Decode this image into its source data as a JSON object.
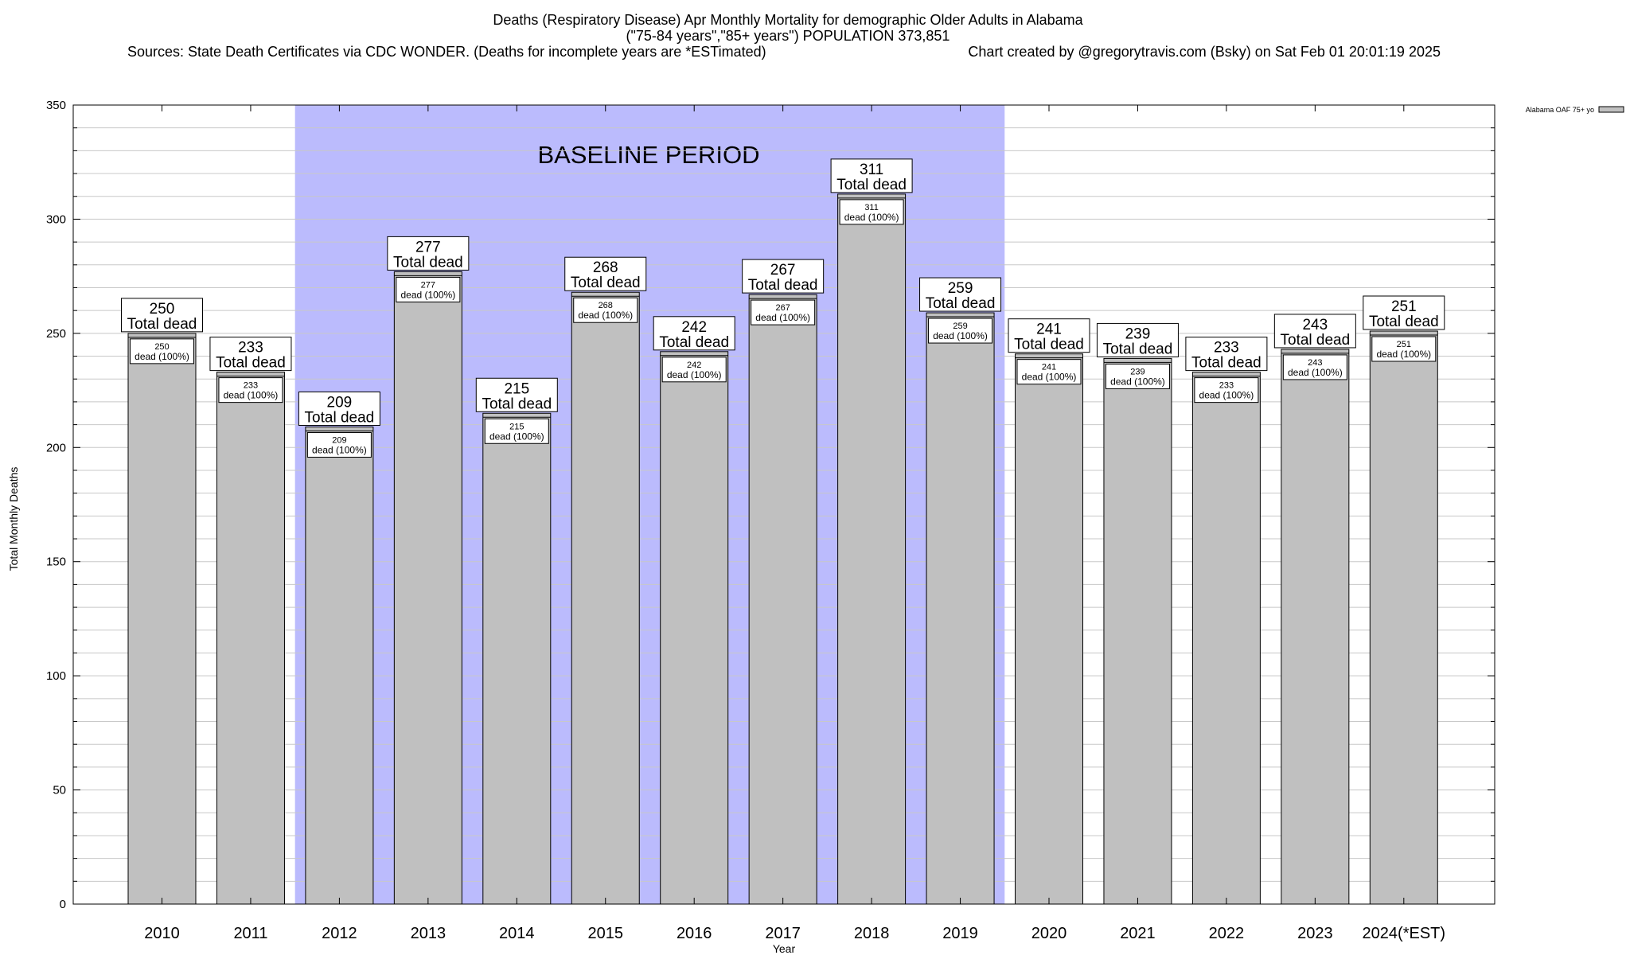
{
  "chart_data": {
    "type": "bar",
    "title": "Deaths (Respiratory Disease) Apr Monthly Mortality for demographic Older Adults in Alabama",
    "subtitle": "(\"75-84 years\",\"85+ years\") POPULATION 373,851",
    "sources": "Sources: State Death Certificates via CDC WONDER. (Deaths for incomplete years are *ESTimated)",
    "credit": "Chart created by @gregorytravis.com (Bsky) on Sat Feb 01 20:01:19 2025",
    "xlabel": "Year",
    "ylabel": "Total Monthly Deaths",
    "ylim": [
      0,
      350
    ],
    "yticks": [
      0,
      50,
      100,
      150,
      200,
      250,
      300,
      350
    ],
    "grid": true,
    "legend": {
      "placement": "top-right",
      "label": "Alabama OAF 75+ yo"
    },
    "categories": [
      "2010",
      "2011",
      "2012",
      "2013",
      "2014",
      "2015",
      "2016",
      "2017",
      "2018",
      "2019",
      "2020",
      "2021",
      "2022",
      "2023",
      "2024(*EST)"
    ],
    "series": [
      {
        "name": "Alabama OAF 75+ yo",
        "values": [
          250,
          233,
          209,
          277,
          215,
          268,
          242,
          267,
          311,
          259,
          241,
          239,
          233,
          243,
          251
        ]
      }
    ],
    "total_label": "Total dead",
    "inner_label": "dead (100%)",
    "baseline": {
      "label": "BASELINE PERIOD",
      "start": "2012",
      "end": "2019"
    },
    "colors": {
      "bar": "#c0c0c0",
      "baseline_band": "#bbbbfd",
      "grid": "#c8c8c8"
    }
  }
}
